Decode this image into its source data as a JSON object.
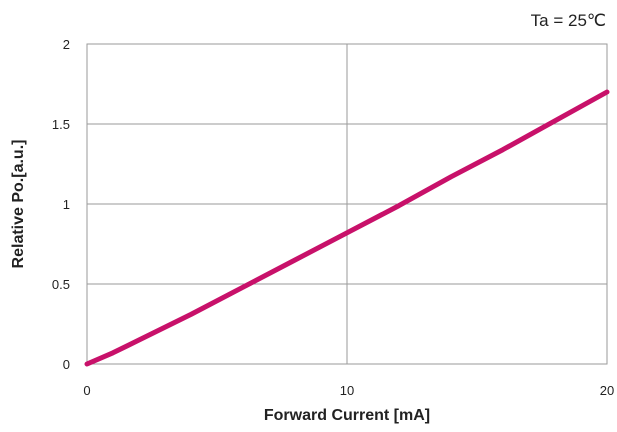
{
  "chart_data": {
    "type": "line",
    "annotation": "Ta = 25℃",
    "xlabel": "Forward Current [mA]",
    "ylabel": "Relative Po.[a.u.]",
    "xlim": [
      0,
      20
    ],
    "ylim": [
      0,
      2
    ],
    "xticks": [
      "0",
      "10",
      "20"
    ],
    "yticks": [
      "0",
      "0.5",
      "1",
      "1.5",
      "2"
    ],
    "grid": true,
    "series": [
      {
        "color": "#C8116A",
        "x": [
          0,
          1,
          2,
          4,
          6,
          8,
          10,
          12,
          14,
          16,
          18,
          20
        ],
        "y": [
          0,
          0.07,
          0.15,
          0.31,
          0.48,
          0.65,
          0.82,
          0.99,
          1.17,
          1.34,
          1.52,
          1.7
        ]
      }
    ]
  }
}
